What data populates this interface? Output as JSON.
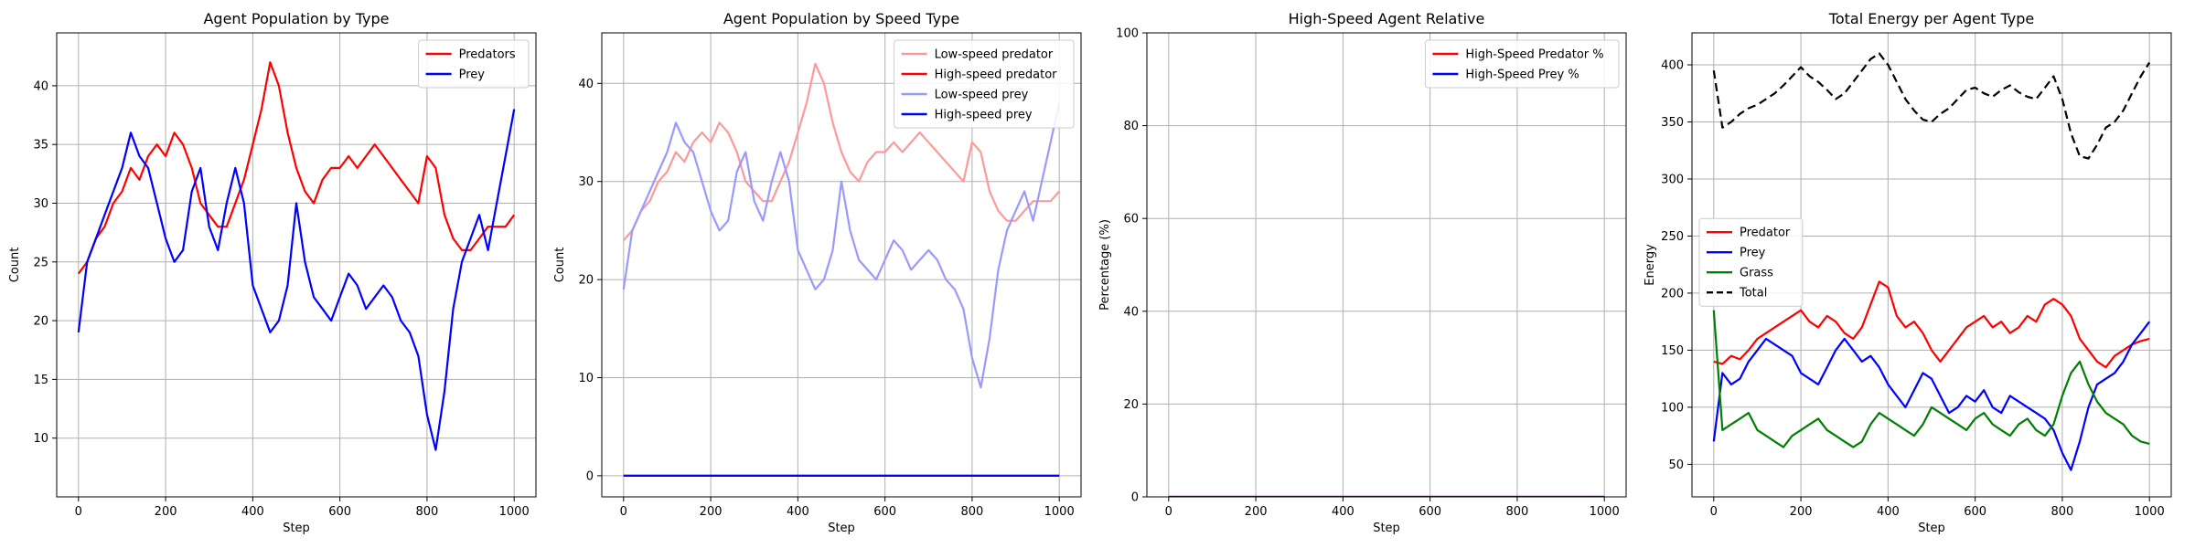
{
  "chart_data": [
    {
      "type": "line",
      "title": "Agent Population by Type",
      "xlabel": "Step",
      "ylabel": "Count",
      "xlim": [
        -50,
        1050
      ],
      "ylim": [
        5,
        44.5
      ],
      "xticks": [
        0,
        200,
        400,
        600,
        800,
        1000
      ],
      "yticks": [
        10,
        15,
        20,
        25,
        30,
        35,
        40
      ],
      "grid": true,
      "legend_position": "top-right",
      "series": [
        {
          "name": "Predators",
          "color": "#ff0000",
          "style": "solid",
          "x": [
            0,
            20,
            40,
            60,
            80,
            100,
            120,
            140,
            160,
            180,
            200,
            220,
            240,
            260,
            280,
            300,
            320,
            340,
            360,
            380,
            400,
            420,
            440,
            460,
            480,
            500,
            520,
            540,
            560,
            580,
            600,
            620,
            640,
            660,
            680,
            700,
            720,
            740,
            760,
            780,
            800,
            820,
            840,
            860,
            880,
            900,
            920,
            940,
            960,
            980,
            1000
          ],
          "values": [
            24,
            25,
            27,
            28,
            30,
            31,
            33,
            32,
            34,
            35,
            34,
            36,
            35,
            33,
            30,
            29,
            28,
            28,
            30,
            32,
            35,
            38,
            42,
            40,
            36,
            33,
            31,
            30,
            32,
            33,
            33,
            34,
            33,
            34,
            35,
            34,
            33,
            32,
            31,
            30,
            34,
            33,
            29,
            27,
            26,
            26,
            27,
            28,
            28,
            28,
            29
          ]
        },
        {
          "name": "Prey",
          "color": "#0000ff",
          "style": "solid",
          "x": [
            0,
            20,
            40,
            60,
            80,
            100,
            120,
            140,
            160,
            180,
            200,
            220,
            240,
            260,
            280,
            300,
            320,
            340,
            360,
            380,
            400,
            420,
            440,
            460,
            480,
            500,
            520,
            540,
            560,
            580,
            600,
            620,
            640,
            660,
            680,
            700,
            720,
            740,
            760,
            780,
            800,
            820,
            840,
            860,
            880,
            900,
            920,
            940,
            960,
            980,
            1000
          ],
          "values": [
            19,
            25,
            27,
            29,
            31,
            33,
            36,
            34,
            33,
            30,
            27,
            25,
            26,
            31,
            33,
            28,
            26,
            30,
            33,
            30,
            23,
            21,
            19,
            20,
            23,
            30,
            25,
            22,
            21,
            20,
            22,
            24,
            23,
            21,
            22,
            23,
            22,
            20,
            19,
            17,
            12,
            9,
            14,
            21,
            25,
            27,
            29,
            26,
            30,
            34,
            38
          ]
        }
      ]
    },
    {
      "type": "line",
      "title": "Agent Population by Speed Type",
      "xlabel": "Step",
      "ylabel": "Count",
      "xlim": [
        -50,
        1050
      ],
      "ylim": [
        -2.15,
        45.15
      ],
      "xticks": [
        0,
        200,
        400,
        600,
        800,
        1000
      ],
      "yticks": [
        0,
        10,
        20,
        30,
        40
      ],
      "grid": true,
      "legend_position": "top-right",
      "series": [
        {
          "name": "Low-speed predator",
          "color": "#ff9999",
          "style": "solid",
          "x": [
            0,
            20,
            40,
            60,
            80,
            100,
            120,
            140,
            160,
            180,
            200,
            220,
            240,
            260,
            280,
            300,
            320,
            340,
            360,
            380,
            400,
            420,
            440,
            460,
            480,
            500,
            520,
            540,
            560,
            580,
            600,
            620,
            640,
            660,
            680,
            700,
            720,
            740,
            760,
            780,
            800,
            820,
            840,
            860,
            880,
            900,
            920,
            940,
            960,
            980,
            1000
          ],
          "values": [
            24,
            25,
            27,
            28,
            30,
            31,
            33,
            32,
            34,
            35,
            34,
            36,
            35,
            33,
            30,
            29,
            28,
            28,
            30,
            32,
            35,
            38,
            42,
            40,
            36,
            33,
            31,
            30,
            32,
            33,
            33,
            34,
            33,
            34,
            35,
            34,
            33,
            32,
            31,
            30,
            34,
            33,
            29,
            27,
            26,
            26,
            27,
            28,
            28,
            28,
            29
          ]
        },
        {
          "name": "High-speed predator",
          "color": "#ff0000",
          "style": "solid",
          "x": [
            0,
            1000
          ],
          "values": [
            0,
            0
          ]
        },
        {
          "name": "Low-speed prey",
          "color": "#9999ff",
          "style": "solid",
          "x": [
            0,
            20,
            40,
            60,
            80,
            100,
            120,
            140,
            160,
            180,
            200,
            220,
            240,
            260,
            280,
            300,
            320,
            340,
            360,
            380,
            400,
            420,
            440,
            460,
            480,
            500,
            520,
            540,
            560,
            580,
            600,
            620,
            640,
            660,
            680,
            700,
            720,
            740,
            760,
            780,
            800,
            820,
            840,
            860,
            880,
            900,
            920,
            940,
            960,
            980,
            1000
          ],
          "values": [
            19,
            25,
            27,
            29,
            31,
            33,
            36,
            34,
            33,
            30,
            27,
            25,
            26,
            31,
            33,
            28,
            26,
            30,
            33,
            30,
            23,
            21,
            19,
            20,
            23,
            30,
            25,
            22,
            21,
            20,
            22,
            24,
            23,
            21,
            22,
            23,
            22,
            20,
            19,
            17,
            12,
            9,
            14,
            21,
            25,
            27,
            29,
            26,
            30,
            34,
            38
          ]
        },
        {
          "name": "High-speed prey",
          "color": "#0000ff",
          "style": "solid",
          "x": [
            0,
            1000
          ],
          "values": [
            0,
            0
          ]
        }
      ]
    },
    {
      "type": "line",
      "title": "High-Speed Agent Relative",
      "xlabel": "Step",
      "ylabel": "Percentage (%)",
      "xlim": [
        -50,
        1050
      ],
      "ylim": [
        0,
        100
      ],
      "xticks": [
        0,
        200,
        400,
        600,
        800,
        1000
      ],
      "yticks": [
        0,
        20,
        40,
        60,
        80,
        100
      ],
      "grid": true,
      "legend_position": "top-right",
      "series": [
        {
          "name": "High-Speed Predator %",
          "color": "#ff0000",
          "style": "solid",
          "x": [
            0,
            1000
          ],
          "values": [
            0,
            0
          ]
        },
        {
          "name": "High-Speed Prey %",
          "color": "#0000ff",
          "style": "solid",
          "x": [
            0,
            1000
          ],
          "values": [
            0,
            0
          ]
        }
      ]
    },
    {
      "type": "line",
      "title": "Total Energy per Agent Type",
      "xlabel": "Step",
      "ylabel": "Energy",
      "xlim": [
        -50,
        1050
      ],
      "ylim": [
        21.5,
        428
      ],
      "xticks": [
        0,
        200,
        400,
        600,
        800,
        1000
      ],
      "yticks": [
        50,
        100,
        150,
        200,
        250,
        300,
        350,
        400
      ],
      "grid": true,
      "legend_position": "center-left",
      "series": [
        {
          "name": "Predator",
          "color": "#ff0000",
          "style": "solid",
          "x": [
            0,
            20,
            40,
            60,
            80,
            100,
            120,
            140,
            160,
            180,
            200,
            220,
            240,
            260,
            280,
            300,
            320,
            340,
            360,
            380,
            400,
            420,
            440,
            460,
            480,
            500,
            520,
            540,
            560,
            580,
            600,
            620,
            640,
            660,
            680,
            700,
            720,
            740,
            760,
            780,
            800,
            820,
            840,
            860,
            880,
            900,
            920,
            940,
            960,
            980,
            1000
          ],
          "values": [
            140,
            138,
            145,
            142,
            150,
            160,
            165,
            170,
            175,
            180,
            185,
            175,
            170,
            180,
            175,
            165,
            160,
            170,
            190,
            210,
            205,
            180,
            170,
            175,
            165,
            150,
            140,
            150,
            160,
            170,
            175,
            180,
            170,
            175,
            165,
            170,
            180,
            175,
            190,
            195,
            190,
            180,
            160,
            150,
            140,
            135,
            145,
            150,
            155,
            158,
            160
          ]
        },
        {
          "name": "Prey",
          "color": "#0000ff",
          "style": "solid",
          "x": [
            0,
            20,
            40,
            60,
            80,
            100,
            120,
            140,
            160,
            180,
            200,
            220,
            240,
            260,
            280,
            300,
            320,
            340,
            360,
            380,
            400,
            420,
            440,
            460,
            480,
            500,
            520,
            540,
            560,
            580,
            600,
            620,
            640,
            660,
            680,
            700,
            720,
            740,
            760,
            780,
            800,
            820,
            840,
            860,
            880,
            900,
            920,
            940,
            960,
            980,
            1000
          ],
          "values": [
            70,
            130,
            120,
            125,
            140,
            150,
            160,
            155,
            150,
            145,
            130,
            125,
            120,
            135,
            150,
            160,
            150,
            140,
            145,
            135,
            120,
            110,
            100,
            115,
            130,
            125,
            110,
            95,
            100,
            110,
            105,
            115,
            100,
            95,
            110,
            105,
            100,
            95,
            90,
            80,
            60,
            45,
            70,
            100,
            120,
            125,
            130,
            140,
            155,
            165,
            175
          ]
        },
        {
          "name": "Grass",
          "color": "#008000",
          "style": "solid",
          "x": [
            0,
            20,
            40,
            60,
            80,
            100,
            120,
            140,
            160,
            180,
            200,
            220,
            240,
            260,
            280,
            300,
            320,
            340,
            360,
            380,
            400,
            420,
            440,
            460,
            480,
            500,
            520,
            540,
            560,
            580,
            600,
            620,
            640,
            660,
            680,
            700,
            720,
            740,
            760,
            780,
            800,
            820,
            840,
            860,
            880,
            900,
            920,
            940,
            960,
            980,
            1000
          ],
          "values": [
            185,
            80,
            85,
            90,
            95,
            80,
            75,
            70,
            65,
            75,
            80,
            85,
            90,
            80,
            75,
            70,
            65,
            70,
            85,
            95,
            90,
            85,
            80,
            75,
            85,
            100,
            95,
            90,
            85,
            80,
            90,
            95,
            85,
            80,
            75,
            85,
            90,
            80,
            75,
            85,
            110,
            130,
            140,
            120,
            105,
            95,
            90,
            85,
            75,
            70,
            68
          ]
        },
        {
          "name": "Total",
          "color": "#000000",
          "style": "dashed",
          "x": [
            0,
            20,
            40,
            60,
            80,
            100,
            120,
            140,
            160,
            180,
            200,
            220,
            240,
            260,
            280,
            300,
            320,
            340,
            360,
            380,
            400,
            420,
            440,
            460,
            480,
            500,
            520,
            540,
            560,
            580,
            600,
            620,
            640,
            660,
            680,
            700,
            720,
            740,
            760,
            780,
            800,
            820,
            840,
            860,
            880,
            900,
            920,
            940,
            960,
            980,
            1000
          ],
          "values": [
            395,
            345,
            350,
            357,
            362,
            365,
            370,
            375,
            382,
            390,
            398,
            390,
            385,
            378,
            370,
            375,
            385,
            395,
            405,
            410,
            400,
            385,
            370,
            360,
            352,
            350,
            357,
            362,
            370,
            378,
            380,
            375,
            372,
            378,
            382,
            376,
            372,
            370,
            380,
            390,
            370,
            340,
            320,
            318,
            330,
            345,
            350,
            360,
            375,
            390,
            402
          ]
        }
      ]
    }
  ]
}
